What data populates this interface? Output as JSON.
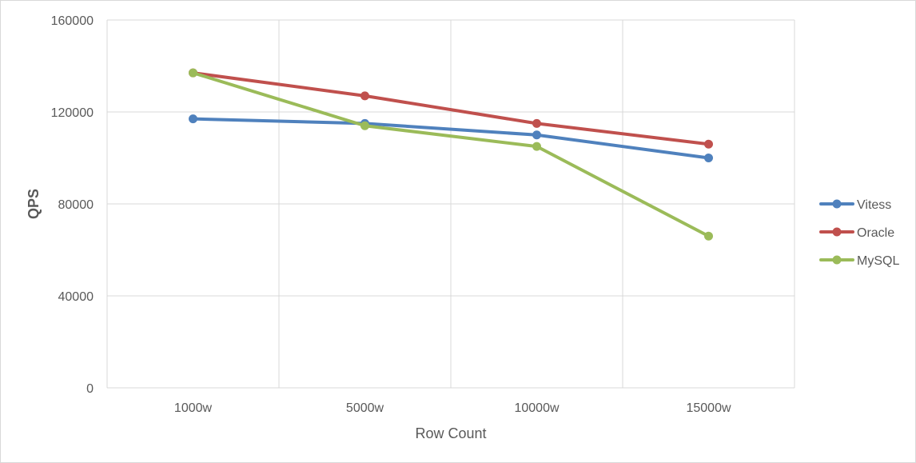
{
  "chart_data": {
    "type": "line",
    "title": "",
    "xlabel": "Row Count",
    "ylabel": "QPS",
    "categories": [
      "1000w",
      "5000w",
      "10000w",
      "15000w"
    ],
    "ylim": [
      0,
      160000
    ],
    "yticks": [
      0,
      40000,
      80000,
      120000,
      160000
    ],
    "grid": true,
    "legend_position": "right",
    "series": [
      {
        "name": "Vitess",
        "color": "#4f81bd",
        "values": [
          117000,
          115000,
          110000,
          100000
        ]
      },
      {
        "name": "Oracle",
        "color": "#c0504d",
        "values": [
          137000,
          127000,
          115000,
          106000
        ]
      },
      {
        "name": "MySQL",
        "color": "#9bbb59",
        "values": [
          137000,
          114000,
          105000,
          66000
        ]
      }
    ]
  }
}
